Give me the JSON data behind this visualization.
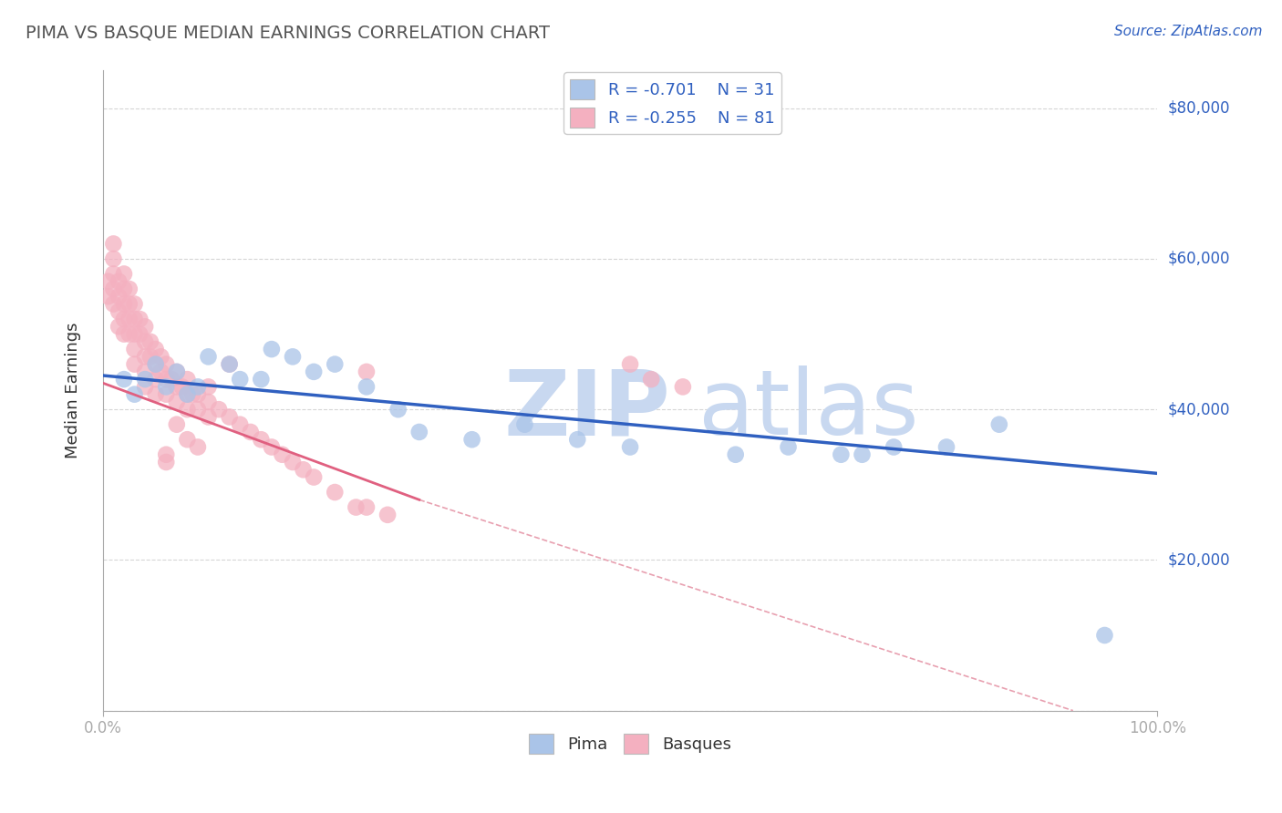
{
  "title": "PIMA VS BASQUE MEDIAN EARNINGS CORRELATION CHART",
  "source_text": "Source: ZipAtlas.com",
  "xlabel": "",
  "ylabel": "Median Earnings",
  "xlim": [
    0.0,
    1.0
  ],
  "ylim": [
    0,
    85000
  ],
  "yticks": [
    0,
    20000,
    40000,
    60000,
    80000
  ],
  "ytick_labels": [
    "",
    "$20,000",
    "$40,000",
    "$60,000",
    "$80,000"
  ],
  "xtick_labels": [
    "0.0%",
    "100.0%"
  ],
  "background_color": "#ffffff",
  "grid_color": "#cccccc",
  "blue_color": "#aac4e8",
  "pink_color": "#f4b0c0",
  "blue_line_color": "#3060c0",
  "pink_line_color": "#e06080",
  "dash_color": "#e8a0b0",
  "title_color": "#555555",
  "axis_label_color": "#3060c0",
  "legend_text_color": "#3060c0",
  "watermark_zip_color": "#c0d0e8",
  "watermark_atlas_color": "#c0d0e8",
  "legend_R_blue": "R = -0.701",
  "legend_N_blue": "N = 31",
  "legend_R_pink": "R = -0.255",
  "legend_N_pink": "N = 81",
  "blue_scatter_x": [
    0.02,
    0.03,
    0.04,
    0.05,
    0.06,
    0.07,
    0.08,
    0.09,
    0.1,
    0.12,
    0.13,
    0.15,
    0.16,
    0.18,
    0.2,
    0.22,
    0.25,
    0.28,
    0.3,
    0.35,
    0.4,
    0.45,
    0.5,
    0.6,
    0.65,
    0.7,
    0.72,
    0.75,
    0.8,
    0.85,
    0.95
  ],
  "blue_scatter_y": [
    44000,
    42000,
    44000,
    46000,
    43000,
    45000,
    42000,
    43000,
    47000,
    46000,
    44000,
    44000,
    48000,
    47000,
    45000,
    46000,
    43000,
    40000,
    37000,
    36000,
    38000,
    36000,
    35000,
    34000,
    35000,
    34000,
    34000,
    35000,
    35000,
    38000,
    10000
  ],
  "pink_scatter_x": [
    0.005,
    0.005,
    0.01,
    0.01,
    0.01,
    0.01,
    0.01,
    0.015,
    0.015,
    0.015,
    0.015,
    0.02,
    0.02,
    0.02,
    0.02,
    0.02,
    0.025,
    0.025,
    0.025,
    0.025,
    0.03,
    0.03,
    0.03,
    0.03,
    0.03,
    0.035,
    0.035,
    0.04,
    0.04,
    0.04,
    0.04,
    0.04,
    0.045,
    0.045,
    0.05,
    0.05,
    0.05,
    0.05,
    0.055,
    0.055,
    0.06,
    0.06,
    0.06,
    0.065,
    0.07,
    0.07,
    0.07,
    0.075,
    0.08,
    0.08,
    0.08,
    0.085,
    0.09,
    0.09,
    0.1,
    0.1,
    0.11,
    0.12,
    0.13,
    0.14,
    0.15,
    0.16,
    0.17,
    0.18,
    0.19,
    0.2,
    0.22,
    0.24,
    0.25,
    0.27,
    0.1,
    0.12,
    0.25,
    0.5,
    0.52,
    0.55,
    0.08,
    0.09,
    0.06,
    0.06,
    0.07
  ],
  "pink_scatter_y": [
    57000,
    55000,
    62000,
    60000,
    58000,
    56000,
    54000,
    57000,
    55000,
    53000,
    51000,
    58000,
    56000,
    54000,
    52000,
    50000,
    56000,
    54000,
    52000,
    50000,
    54000,
    52000,
    50000,
    48000,
    46000,
    52000,
    50000,
    51000,
    49000,
    47000,
    45000,
    43000,
    49000,
    47000,
    48000,
    46000,
    44000,
    42000,
    47000,
    45000,
    46000,
    44000,
    42000,
    44000,
    45000,
    43000,
    41000,
    43000,
    44000,
    42000,
    40000,
    42000,
    42000,
    40000,
    41000,
    39000,
    40000,
    39000,
    38000,
    37000,
    36000,
    35000,
    34000,
    33000,
    32000,
    31000,
    29000,
    27000,
    27000,
    26000,
    43000,
    46000,
    45000,
    46000,
    44000,
    43000,
    36000,
    35000,
    34000,
    33000,
    38000
  ],
  "blue_trend_x0": 0.0,
  "blue_trend_y0": 44500,
  "blue_trend_x1": 1.0,
  "blue_trend_y1": 31500,
  "pink_trend_x0": 0.0,
  "pink_trend_y0": 43500,
  "pink_trend_x1": 0.3,
  "pink_trend_y1": 28000,
  "dash_trend_x0": 0.3,
  "dash_trend_y0": 28000,
  "dash_trend_x1": 0.92,
  "dash_trend_y1": 0
}
